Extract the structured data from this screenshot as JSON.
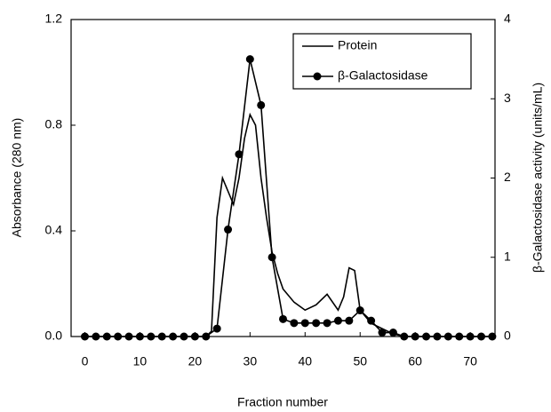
{
  "chart_data": {
    "type": "line",
    "xlabel": "Fraction number",
    "ylabel": "Absorbance (280 nm)",
    "y2label": "β-Galactosidase activity (units/mL)",
    "xlim": [
      -2.5,
      74.5
    ],
    "xticks": [
      0,
      10,
      20,
      30,
      40,
      50,
      60,
      70
    ],
    "ylim": [
      0,
      1.2
    ],
    "yticks": [
      {
        "value": 0,
        "label": "0.0"
      },
      {
        "value": 0.4,
        "label": "0.4"
      },
      {
        "value": 0.8,
        "label": "0.8"
      },
      {
        "value": 1.2,
        "label": "1.2"
      }
    ],
    "y2lim": [
      0,
      4
    ],
    "y2ticks": [
      0,
      1,
      2,
      3,
      4
    ],
    "legend": "upper right",
    "series": [
      {
        "name": "Protein",
        "color": "#000000",
        "marker": false,
        "x": [
          0,
          10,
          20,
          22,
          23,
          24,
          25,
          26,
          27,
          28,
          29,
          30,
          31,
          32,
          33,
          34,
          35,
          36,
          38,
          40,
          42,
          44,
          46,
          47,
          48,
          49,
          50,
          52,
          54,
          56,
          58,
          74
        ],
        "values": [
          0,
          0,
          0,
          0,
          0.02,
          0.45,
          0.6,
          0.55,
          0.5,
          0.6,
          0.75,
          0.84,
          0.8,
          0.6,
          0.45,
          0.32,
          0.24,
          0.18,
          0.13,
          0.1,
          0.12,
          0.16,
          0.1,
          0.15,
          0.26,
          0.25,
          0.1,
          0.05,
          0.03,
          0.01,
          0,
          0
        ]
      },
      {
        "name": "β-Galactosidase",
        "color": "#000000",
        "marker": true,
        "axis": "y2",
        "x": [
          0,
          2,
          4,
          6,
          8,
          10,
          12,
          14,
          16,
          18,
          20,
          22,
          24,
          26,
          28,
          30,
          32,
          34,
          36,
          38,
          40,
          42,
          44,
          46,
          48,
          50,
          52,
          54,
          56,
          58,
          60,
          62,
          64,
          66,
          68,
          70,
          72,
          74
        ],
        "values": [
          0,
          0,
          0,
          0,
          0,
          0,
          0,
          0,
          0,
          0,
          0,
          0,
          0.1,
          1.35,
          2.3,
          3.5,
          2.92,
          1.0,
          0.22,
          0.17,
          0.17,
          0.17,
          0.17,
          0.2,
          0.2,
          0.33,
          0.2,
          0.05,
          0.05,
          0,
          0,
          0,
          0,
          0,
          0,
          0,
          0,
          0
        ]
      }
    ]
  }
}
